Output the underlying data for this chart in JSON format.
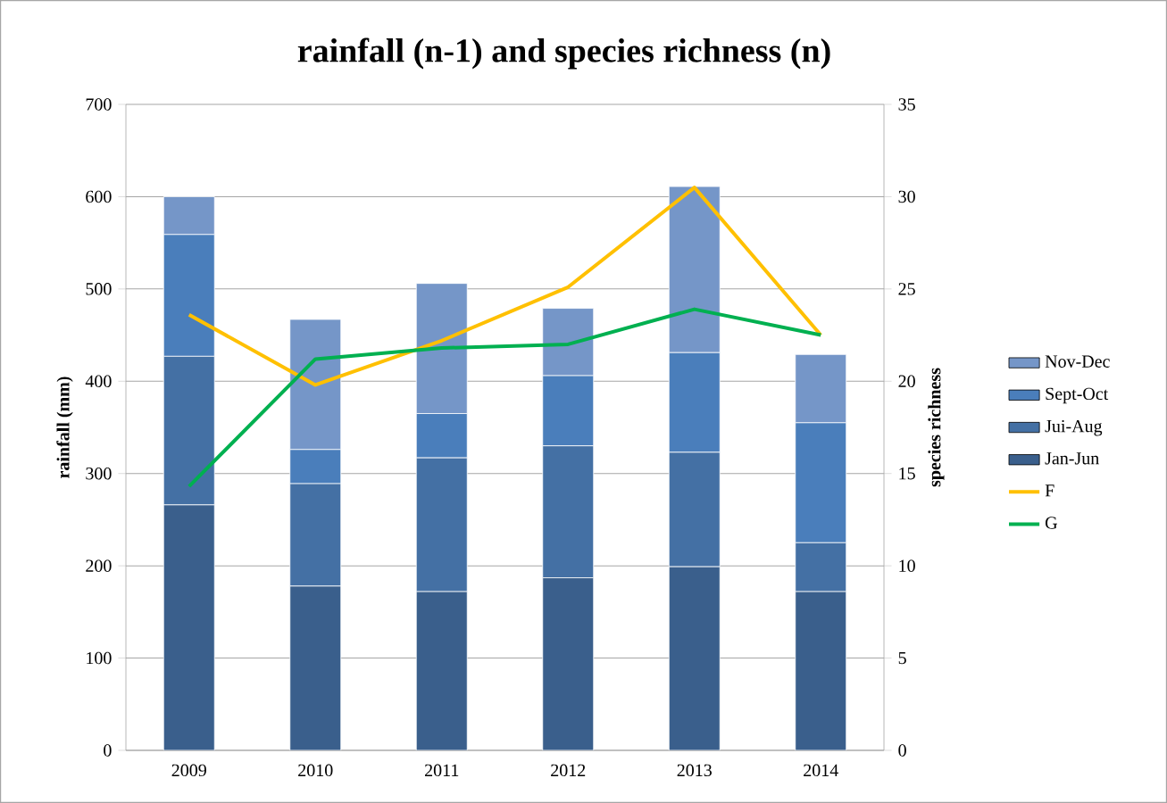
{
  "chart_data": {
    "type": "bar",
    "title": "rainfall (n-1) and species richness (n)",
    "ylabel": "rainfall (mm)",
    "y2label": "species richness",
    "categories": [
      "2009",
      "2010",
      "2011",
      "2012",
      "2013",
      "2014"
    ],
    "stacked": true,
    "series": [
      {
        "name": "Jan-Jun",
        "color": "#3a5f8c",
        "values": [
          266,
          178,
          172,
          187,
          199,
          172
        ]
      },
      {
        "name": "Jui-Aug",
        "color": "#4470a4",
        "values": [
          161,
          111,
          145,
          143,
          124,
          53
        ]
      },
      {
        "name": "Sept-Oct",
        "color": "#4a7ebb",
        "values": [
          132,
          37,
          48,
          76,
          108,
          130
        ]
      },
      {
        "name": "Nov-Dec",
        "color": "#7596c8",
        "values": [
          41,
          141,
          141,
          73,
          180,
          74
        ]
      },
      {
        "name": "F",
        "type": "line",
        "axis": "y2",
        "color": "#ffc000",
        "values": [
          23.6,
          19.8,
          22.2,
          25.1,
          30.5,
          22.5
        ]
      },
      {
        "name": "G",
        "type": "line",
        "axis": "y2",
        "color": "#00b050",
        "values": [
          14.3,
          21.2,
          21.8,
          22.0,
          23.9,
          22.5
        ]
      }
    ],
    "ylim": [
      0,
      700
    ],
    "yticks": [
      0,
      100,
      200,
      300,
      400,
      500,
      600,
      700
    ],
    "y2lim": [
      0,
      35
    ],
    "y2ticks": [
      0,
      5,
      10,
      15,
      20,
      25,
      30,
      35
    ],
    "grid": "y",
    "legend": "right",
    "marker": "none",
    "line_style": "solid"
  }
}
